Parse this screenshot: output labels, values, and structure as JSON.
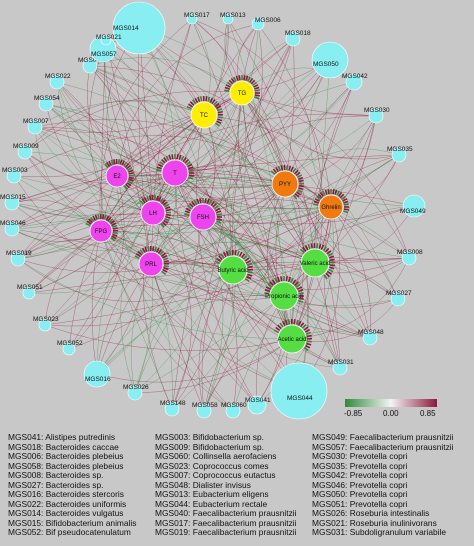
{
  "colors": {
    "background": "#c8c8c8",
    "microbe_node": "#88eef2",
    "hormone_node": "#ee44ee",
    "lipid_node": "#ffee00",
    "gut_hormone_node": "#f07a10",
    "scfa_node": "#55dd44",
    "positive_edge": "#8b1a3c",
    "negative_edge": "#2e8b3c"
  },
  "colorbar": {
    "min_label": "-0.85",
    "mid_label": "0.00",
    "max_label": "0.85",
    "min": -0.85,
    "max": 0.85
  },
  "nodes": {
    "microbes": [
      {
        "label": "MGS014",
        "size": 3
      },
      {
        "label": "MGS017",
        "size": 0
      },
      {
        "label": "MGS013",
        "size": 0
      },
      {
        "label": "MGS006",
        "size": 1
      },
      {
        "label": "MGS018",
        "size": 1
      },
      {
        "label": "MGS050",
        "size": 3
      },
      {
        "label": "MGS042",
        "size": 1
      },
      {
        "label": "MGS030",
        "size": 1
      },
      {
        "label": "MGS035",
        "size": 1
      },
      {
        "label": "MGS049",
        "size": 2
      },
      {
        "label": "MGS008",
        "size": 1
      },
      {
        "label": "MGS027",
        "size": 1
      },
      {
        "label": "MGS048",
        "size": 1
      },
      {
        "label": "MGS031",
        "size": 1
      },
      {
        "label": "MGS044",
        "size": 4
      },
      {
        "label": "MGS041",
        "size": 1
      },
      {
        "label": "MGS060",
        "size": 1
      },
      {
        "label": "MGS058",
        "size": 1
      },
      {
        "label": "MGS148",
        "size": 1
      },
      {
        "label": "MGS026",
        "size": 1
      },
      {
        "label": "MGS016",
        "size": 2
      },
      {
        "label": "MGS052",
        "size": 1
      },
      {
        "label": "MGS023",
        "size": 1
      },
      {
        "label": "MGS051",
        "size": 1
      },
      {
        "label": "MGS019",
        "size": 1
      },
      {
        "label": "MGS046",
        "size": 1
      },
      {
        "label": "MGS015",
        "size": 1
      },
      {
        "label": "MGS003",
        "size": 1
      },
      {
        "label": "MGS009",
        "size": 1
      },
      {
        "label": "MGS007",
        "size": 1
      },
      {
        "label": "MGS054",
        "size": 1
      },
      {
        "label": "MGS022",
        "size": 1
      },
      {
        "label": "MGS040",
        "size": 1
      },
      {
        "label": "MGS057",
        "size": 2
      },
      {
        "label": "MGS021",
        "size": 1
      }
    ],
    "hosts": [
      {
        "label": "TG",
        "type": "lipid"
      },
      {
        "label": "TC",
        "type": "lipid"
      },
      {
        "label": "E2",
        "type": "hormone"
      },
      {
        "label": "T",
        "type": "hormone"
      },
      {
        "label": "FPG",
        "type": "hormone"
      },
      {
        "label": "LH",
        "type": "hormone"
      },
      {
        "label": "FSH",
        "type": "hormone"
      },
      {
        "label": "PRL",
        "type": "hormone"
      },
      {
        "label": "PYY",
        "type": "gut_hormone"
      },
      {
        "label": "Ghrelin",
        "type": "gut_hormone"
      },
      {
        "label": "Butyric acid",
        "type": "scfa"
      },
      {
        "label": "Valeric acid",
        "type": "scfa"
      },
      {
        "label": "Propionic acid",
        "type": "scfa"
      },
      {
        "label": "Acetic acid",
        "type": "scfa"
      }
    ]
  },
  "legend": {
    "column1": [
      "MGS041: Alistipes putredinis",
      "MGS018: Bacteroides caccae",
      "MGS006: Bacteroides plebeius",
      "MGS058: Bacteroides plebeius",
      "MGS008: Bacteroides sp.",
      "MGS027: Bacteroides sp.",
      "MGS016: Bacteroides stercoris",
      "MGS022: Bacteroides uniformis",
      "MGS014: Bacteroides vulgatus",
      "MGS015: Bifidobacterium animalis",
      "MGS052: Bif pseudocatenulatum"
    ],
    "column2": [
      "MGS003: Bifidobacterium sp.",
      "MGS009: Bifidobacterium sp.",
      "MGS060: Collinsella aerofaciens",
      "MGS023: Coprococcus comes",
      "MGS007: Coprococcus eutactus",
      "MGS048: Dialister invisus",
      "MGS013: Eubacterium eligens",
      "MGS044: Eubacterium rectale",
      "MGS040: Faecalibacterium prausnitzii",
      "MGS017: Faecalibacterium prausnitzii",
      "MGS019: Faecalibacterium prausnitzii"
    ],
    "column3": [
      "MGS049: Faecalibacterium prausnitzii",
      "MGS057: Faecalibacterium prausnitzii",
      "MGS030: Prevotella copri",
      "MGS035: Prevotella copri",
      "MGS042: Prevotella copri",
      "MGS046: Prevotella copri",
      "MGS050: Prevotella copri",
      "MGS051: Prevotella copri",
      "MGS026: Roseburia intestinalis",
      "MGS021: Roseburia inulinivorans",
      "MGS031: Subdoligranulum variabile"
    ]
  }
}
